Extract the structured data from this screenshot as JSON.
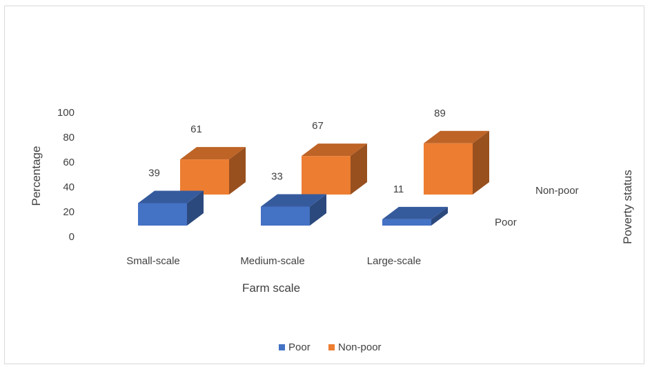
{
  "chart_data": {
    "type": "bar",
    "variant": "3d-column",
    "categories": [
      "Small-scale",
      "Medium-scale",
      "Large-scale"
    ],
    "series": [
      {
        "name": "Poor",
        "values": [
          39,
          33,
          11
        ],
        "color": "#4472c4",
        "labels": [
          "39",
          "33",
          "11"
        ]
      },
      {
        "name": "Non-poor",
        "values": [
          61,
          67,
          89
        ],
        "color": "#ed7d31",
        "labels": [
          "61",
          "67",
          "89"
        ]
      }
    ],
    "xlabel": "Farm scale",
    "ylabel": "Percentage",
    "zlabel": "Poverty status",
    "yticks": [
      "0",
      "20",
      "40",
      "60",
      "80",
      "100"
    ],
    "ylim": [
      0,
      100
    ],
    "legend": {
      "position": "bottom",
      "items": [
        "Poor",
        "Non-poor"
      ]
    },
    "grid": false
  }
}
